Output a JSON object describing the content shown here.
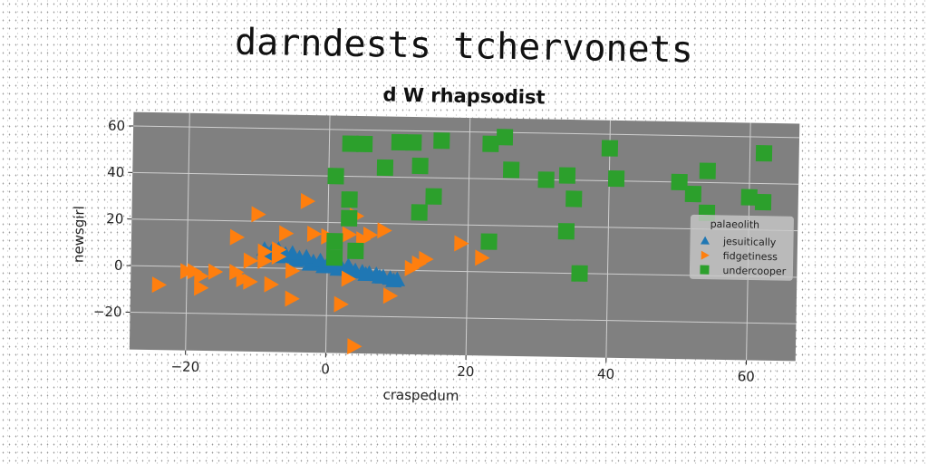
{
  "suptitle": "darndests tchervonets",
  "chart_data": {
    "type": "scatter",
    "title": "d W rhapsodist",
    "xlabel": "craspedum",
    "ylabel": "newsgirl",
    "xlim": [
      -28,
      67
    ],
    "ylim": [
      -36,
      66
    ],
    "xticks": [
      -20,
      0,
      20,
      40,
      60
    ],
    "yticks": [
      -20,
      0,
      20,
      40,
      60
    ],
    "grid": true,
    "background": "#808080",
    "legend": {
      "title": "palaeolith",
      "placement": "center-right"
    },
    "series": [
      {
        "name": "jesuitically",
        "marker": "triangle-up",
        "color": "#1f77b4",
        "x": [
          -9,
          -8,
          -7,
          -6,
          -5,
          -4,
          -3,
          -2,
          -1,
          0,
          1,
          2,
          3,
          4,
          5,
          6,
          7,
          8,
          9,
          10,
          -8.5,
          -6.5,
          -4.5,
          -2.5,
          -0.5,
          1.5,
          3.5,
          5.5,
          7.5,
          9.5,
          -7,
          -5,
          -3,
          -1,
          1,
          3
        ],
        "y": [
          8,
          7,
          6.5,
          6,
          5,
          4.5,
          4,
          3,
          2.5,
          2,
          1.5,
          1,
          0,
          -0.5,
          -1,
          -1.5,
          -2,
          -3,
          -3.5,
          -4,
          6,
          5,
          3.5,
          2,
          1,
          0,
          -1,
          -2,
          -3,
          -4.5,
          8,
          6.5,
          5,
          3.5,
          2.5,
          1.5
        ]
      },
      {
        "name": "fidgetiness",
        "marker": "triangle-right",
        "color": "#ff7f0e",
        "x": [
          -24,
          -20,
          -19,
          -18,
          -18,
          -16,
          -13,
          -13,
          -12,
          -11,
          -11,
          -10,
          -9,
          -9,
          -8,
          -7,
          -7,
          -6,
          -5,
          -5,
          -3,
          -2,
          3,
          2,
          3,
          4,
          5,
          6,
          8,
          9,
          12,
          13,
          14,
          19,
          22,
          0,
          4,
          36
        ],
        "y": [
          -8,
          -2,
          -2,
          -4,
          -9,
          -2,
          -2,
          13,
          -5,
          3,
          -6,
          23,
          7,
          3,
          -7,
          8,
          5,
          15,
          -13,
          -1,
          29,
          15,
          15,
          -15,
          -4,
          -33,
          13,
          15,
          17,
          -11,
          1,
          3,
          5,
          12,
          6,
          14,
          23,
          0
        ]
      },
      {
        "name": "undercooper",
        "marker": "square",
        "color": "#2ca02c",
        "x": [
          1,
          3,
          5,
          8,
          10,
          12,
          13,
          16,
          15,
          23,
          25,
          26,
          31,
          34,
          34,
          35,
          36,
          40,
          41,
          50,
          52,
          54,
          54,
          60,
          62,
          62,
          3,
          3,
          4,
          13,
          1,
          1,
          23
        ],
        "y": [
          40,
          54,
          54,
          44,
          55,
          55,
          45,
          56,
          32,
          55,
          58,
          44,
          40,
          42,
          18,
          32,
          0,
          54,
          41,
          40,
          35,
          45,
          27,
          34,
          32,
          53,
          30,
          22,
          8,
          25,
          12,
          5,
          13
        ]
      }
    ]
  }
}
